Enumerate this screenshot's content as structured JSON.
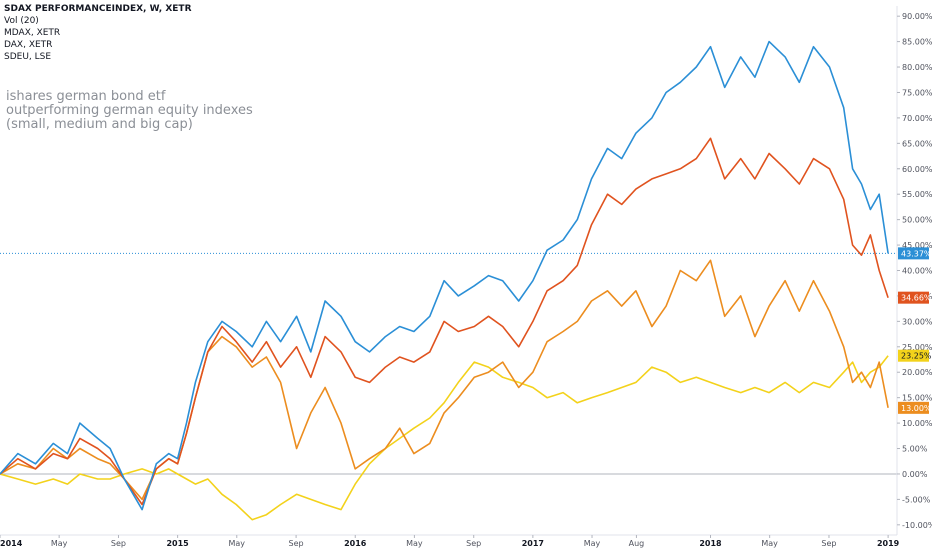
{
  "legend": {
    "title": "SDAX PERFORMANCEINDEX, W, XETR",
    "vol": "Vol (20)",
    "series": [
      "MDAX, XETR",
      "DAX, XETR",
      "SDEU, LSE"
    ]
  },
  "annotation": {
    "line1": "ishares german bond etf",
    "line2": "outperforming german equity indexes",
    "line3": "(small, medium and big cap)"
  },
  "colors": {
    "sdax": "#2b8fd6",
    "mdax": "#e0531f",
    "dax": "#ec8d1f",
    "sdeu": "#f3d21b",
    "zero": "#b2b5be",
    "hline": "#2b8fd6"
  },
  "chart_data": {
    "type": "line",
    "x_ticks": [
      {
        "t": 0,
        "label": "2014",
        "bold": true
      },
      {
        "t": 0.333,
        "label": "May",
        "bold": false
      },
      {
        "t": 0.667,
        "label": "Sep",
        "bold": false
      },
      {
        "t": 1,
        "label": "2015",
        "bold": true
      },
      {
        "t": 1.333,
        "label": "May",
        "bold": false
      },
      {
        "t": 1.667,
        "label": "Sep",
        "bold": false
      },
      {
        "t": 2,
        "label": "2016",
        "bold": true
      },
      {
        "t": 2.333,
        "label": "May",
        "bold": false
      },
      {
        "t": 2.667,
        "label": "Sep",
        "bold": false
      },
      {
        "t": 3,
        "label": "2017",
        "bold": true
      },
      {
        "t": 3.333,
        "label": "May",
        "bold": false
      },
      {
        "t": 3.583,
        "label": "Aug",
        "bold": false
      },
      {
        "t": 4,
        "label": "2018",
        "bold": true
      },
      {
        "t": 4.333,
        "label": "May",
        "bold": false
      },
      {
        "t": 4.667,
        "label": "Sep",
        "bold": false
      },
      {
        "t": 5,
        "label": "2019",
        "bold": true
      }
    ],
    "y_ticks": [
      "-10.00%",
      "-5.00%",
      "0.00%",
      "5.00%",
      "10.00%",
      "15.00%",
      "20.00%",
      "25.00%",
      "30.00%",
      "35.00%",
      "40.00%",
      "45.00%",
      "50.00%",
      "55.00%",
      "60.00%",
      "65.00%",
      "70.00%",
      "75.00%",
      "80.00%",
      "85.00%",
      "90.00%"
    ],
    "y_tick_values": [
      -10,
      -5,
      0,
      5,
      10,
      15,
      20,
      25,
      30,
      35,
      40,
      45,
      50,
      55,
      60,
      65,
      70,
      75,
      80,
      85,
      90
    ],
    "ylim": [
      -12,
      92
    ],
    "xlim": [
      0,
      5.05
    ],
    "series": [
      {
        "key": "sdax",
        "last_label": "43.37%",
        "points": [
          [
            0,
            0
          ],
          [
            0.1,
            4
          ],
          [
            0.2,
            2
          ],
          [
            0.3,
            6
          ],
          [
            0.38,
            4
          ],
          [
            0.45,
            10
          ],
          [
            0.55,
            7
          ],
          [
            0.62,
            5
          ],
          [
            0.7,
            -1
          ],
          [
            0.8,
            -7
          ],
          [
            0.88,
            2
          ],
          [
            0.95,
            4
          ],
          [
            1.0,
            3
          ],
          [
            1.05,
            10
          ],
          [
            1.1,
            18
          ],
          [
            1.17,
            26
          ],
          [
            1.25,
            30
          ],
          [
            1.33,
            28
          ],
          [
            1.42,
            25
          ],
          [
            1.5,
            30
          ],
          [
            1.58,
            26
          ],
          [
            1.67,
            31
          ],
          [
            1.75,
            24
          ],
          [
            1.83,
            34
          ],
          [
            1.92,
            31
          ],
          [
            2.0,
            26
          ],
          [
            2.08,
            24
          ],
          [
            2.17,
            27
          ],
          [
            2.25,
            29
          ],
          [
            2.33,
            28
          ],
          [
            2.42,
            31
          ],
          [
            2.5,
            38
          ],
          [
            2.58,
            35
          ],
          [
            2.67,
            37
          ],
          [
            2.75,
            39
          ],
          [
            2.83,
            38
          ],
          [
            2.92,
            34
          ],
          [
            3.0,
            38
          ],
          [
            3.08,
            44
          ],
          [
            3.17,
            46
          ],
          [
            3.25,
            50
          ],
          [
            3.33,
            58
          ],
          [
            3.42,
            64
          ],
          [
            3.5,
            62
          ],
          [
            3.58,
            67
          ],
          [
            3.67,
            70
          ],
          [
            3.75,
            75
          ],
          [
            3.83,
            77
          ],
          [
            3.92,
            80
          ],
          [
            4.0,
            84
          ],
          [
            4.08,
            76
          ],
          [
            4.17,
            82
          ],
          [
            4.25,
            78
          ],
          [
            4.33,
            85
          ],
          [
            4.42,
            82
          ],
          [
            4.5,
            77
          ],
          [
            4.58,
            84
          ],
          [
            4.67,
            80
          ],
          [
            4.75,
            72
          ],
          [
            4.8,
            60
          ],
          [
            4.85,
            57
          ],
          [
            4.9,
            52
          ],
          [
            4.95,
            55
          ],
          [
            5.0,
            43.37
          ]
        ]
      },
      {
        "key": "mdax",
        "last_label": "34.66%",
        "points": [
          [
            0,
            0
          ],
          [
            0.1,
            3
          ],
          [
            0.2,
            1
          ],
          [
            0.3,
            4
          ],
          [
            0.38,
            3
          ],
          [
            0.45,
            7
          ],
          [
            0.55,
            5
          ],
          [
            0.62,
            3
          ],
          [
            0.7,
            -1
          ],
          [
            0.8,
            -6
          ],
          [
            0.88,
            1
          ],
          [
            0.95,
            3
          ],
          [
            1.0,
            2
          ],
          [
            1.05,
            8
          ],
          [
            1.1,
            15
          ],
          [
            1.17,
            24
          ],
          [
            1.25,
            29
          ],
          [
            1.33,
            26
          ],
          [
            1.42,
            22
          ],
          [
            1.5,
            26
          ],
          [
            1.58,
            21
          ],
          [
            1.67,
            25
          ],
          [
            1.75,
            19
          ],
          [
            1.83,
            27
          ],
          [
            1.92,
            24
          ],
          [
            2.0,
            19
          ],
          [
            2.08,
            18
          ],
          [
            2.17,
            21
          ],
          [
            2.25,
            23
          ],
          [
            2.33,
            22
          ],
          [
            2.42,
            24
          ],
          [
            2.5,
            30
          ],
          [
            2.58,
            28
          ],
          [
            2.67,
            29
          ],
          [
            2.75,
            31
          ],
          [
            2.83,
            29
          ],
          [
            2.92,
            25
          ],
          [
            3.0,
            30
          ],
          [
            3.08,
            36
          ],
          [
            3.17,
            38
          ],
          [
            3.25,
            41
          ],
          [
            3.33,
            49
          ],
          [
            3.42,
            55
          ],
          [
            3.5,
            53
          ],
          [
            3.58,
            56
          ],
          [
            3.67,
            58
          ],
          [
            3.75,
            59
          ],
          [
            3.83,
            60
          ],
          [
            3.92,
            62
          ],
          [
            4.0,
            66
          ],
          [
            4.08,
            58
          ],
          [
            4.17,
            62
          ],
          [
            4.25,
            58
          ],
          [
            4.33,
            63
          ],
          [
            4.42,
            60
          ],
          [
            4.5,
            57
          ],
          [
            4.58,
            62
          ],
          [
            4.67,
            60
          ],
          [
            4.75,
            54
          ],
          [
            4.8,
            45
          ],
          [
            4.85,
            43
          ],
          [
            4.9,
            47
          ],
          [
            4.95,
            40
          ],
          [
            5.0,
            34.66
          ]
        ]
      },
      {
        "key": "dax",
        "last_label": "13.00%",
        "points": [
          [
            0,
            0
          ],
          [
            0.1,
            2
          ],
          [
            0.2,
            1
          ],
          [
            0.3,
            5
          ],
          [
            0.38,
            3
          ],
          [
            0.45,
            5
          ],
          [
            0.55,
            3
          ],
          [
            0.62,
            2
          ],
          [
            0.7,
            -1
          ],
          [
            0.8,
            -5
          ],
          [
            0.88,
            1
          ],
          [
            0.95,
            3
          ],
          [
            1.0,
            2
          ],
          [
            1.05,
            8
          ],
          [
            1.1,
            15
          ],
          [
            1.17,
            24
          ],
          [
            1.25,
            27
          ],
          [
            1.33,
            25
          ],
          [
            1.42,
            21
          ],
          [
            1.5,
            23
          ],
          [
            1.58,
            18
          ],
          [
            1.67,
            5
          ],
          [
            1.75,
            12
          ],
          [
            1.83,
            17
          ],
          [
            1.92,
            10
          ],
          [
            2.0,
            1
          ],
          [
            2.08,
            3
          ],
          [
            2.17,
            5
          ],
          [
            2.25,
            9
          ],
          [
            2.33,
            4
          ],
          [
            2.42,
            6
          ],
          [
            2.5,
            12
          ],
          [
            2.58,
            15
          ],
          [
            2.67,
            19
          ],
          [
            2.75,
            20
          ],
          [
            2.83,
            22
          ],
          [
            2.92,
            17
          ],
          [
            3.0,
            20
          ],
          [
            3.08,
            26
          ],
          [
            3.17,
            28
          ],
          [
            3.25,
            30
          ],
          [
            3.33,
            34
          ],
          [
            3.42,
            36
          ],
          [
            3.5,
            33
          ],
          [
            3.58,
            36
          ],
          [
            3.67,
            29
          ],
          [
            3.75,
            33
          ],
          [
            3.83,
            40
          ],
          [
            3.92,
            38
          ],
          [
            4.0,
            42
          ],
          [
            4.08,
            31
          ],
          [
            4.17,
            35
          ],
          [
            4.25,
            27
          ],
          [
            4.33,
            33
          ],
          [
            4.42,
            38
          ],
          [
            4.5,
            32
          ],
          [
            4.58,
            38
          ],
          [
            4.67,
            32
          ],
          [
            4.75,
            25
          ],
          [
            4.8,
            18
          ],
          [
            4.85,
            20
          ],
          [
            4.9,
            17
          ],
          [
            4.95,
            22
          ],
          [
            5.0,
            13.0
          ]
        ]
      },
      {
        "key": "sdeu",
        "last_label": "23.25%",
        "points": [
          [
            0,
            0
          ],
          [
            0.1,
            -1
          ],
          [
            0.2,
            -2
          ],
          [
            0.3,
            -1
          ],
          [
            0.38,
            -2
          ],
          [
            0.45,
            0
          ],
          [
            0.55,
            -1
          ],
          [
            0.62,
            -1
          ],
          [
            0.7,
            0
          ],
          [
            0.8,
            1
          ],
          [
            0.88,
            0
          ],
          [
            0.95,
            1
          ],
          [
            1.0,
            0
          ],
          [
            1.05,
            -1
          ],
          [
            1.1,
            -2
          ],
          [
            1.17,
            -1
          ],
          [
            1.25,
            -4
          ],
          [
            1.33,
            -6
          ],
          [
            1.42,
            -9
          ],
          [
            1.5,
            -8
          ],
          [
            1.58,
            -6
          ],
          [
            1.67,
            -4
          ],
          [
            1.75,
            -5
          ],
          [
            1.83,
            -6
          ],
          [
            1.92,
            -7
          ],
          [
            2.0,
            -2
          ],
          [
            2.08,
            2
          ],
          [
            2.17,
            5
          ],
          [
            2.25,
            7
          ],
          [
            2.33,
            9
          ],
          [
            2.42,
            11
          ],
          [
            2.5,
            14
          ],
          [
            2.58,
            18
          ],
          [
            2.67,
            22
          ],
          [
            2.75,
            21
          ],
          [
            2.83,
            19
          ],
          [
            2.92,
            18
          ],
          [
            3.0,
            17
          ],
          [
            3.08,
            15
          ],
          [
            3.17,
            16
          ],
          [
            3.25,
            14
          ],
          [
            3.33,
            15
          ],
          [
            3.42,
            16
          ],
          [
            3.5,
            17
          ],
          [
            3.58,
            18
          ],
          [
            3.67,
            21
          ],
          [
            3.75,
            20
          ],
          [
            3.83,
            18
          ],
          [
            3.92,
            19
          ],
          [
            4.0,
            18
          ],
          [
            4.08,
            17
          ],
          [
            4.17,
            16
          ],
          [
            4.25,
            17
          ],
          [
            4.33,
            16
          ],
          [
            4.42,
            18
          ],
          [
            4.5,
            16
          ],
          [
            4.58,
            18
          ],
          [
            4.67,
            17
          ],
          [
            4.75,
            20
          ],
          [
            4.8,
            22
          ],
          [
            4.85,
            18
          ],
          [
            4.9,
            20
          ],
          [
            4.95,
            21
          ],
          [
            5.0,
            23.25
          ]
        ]
      }
    ]
  }
}
